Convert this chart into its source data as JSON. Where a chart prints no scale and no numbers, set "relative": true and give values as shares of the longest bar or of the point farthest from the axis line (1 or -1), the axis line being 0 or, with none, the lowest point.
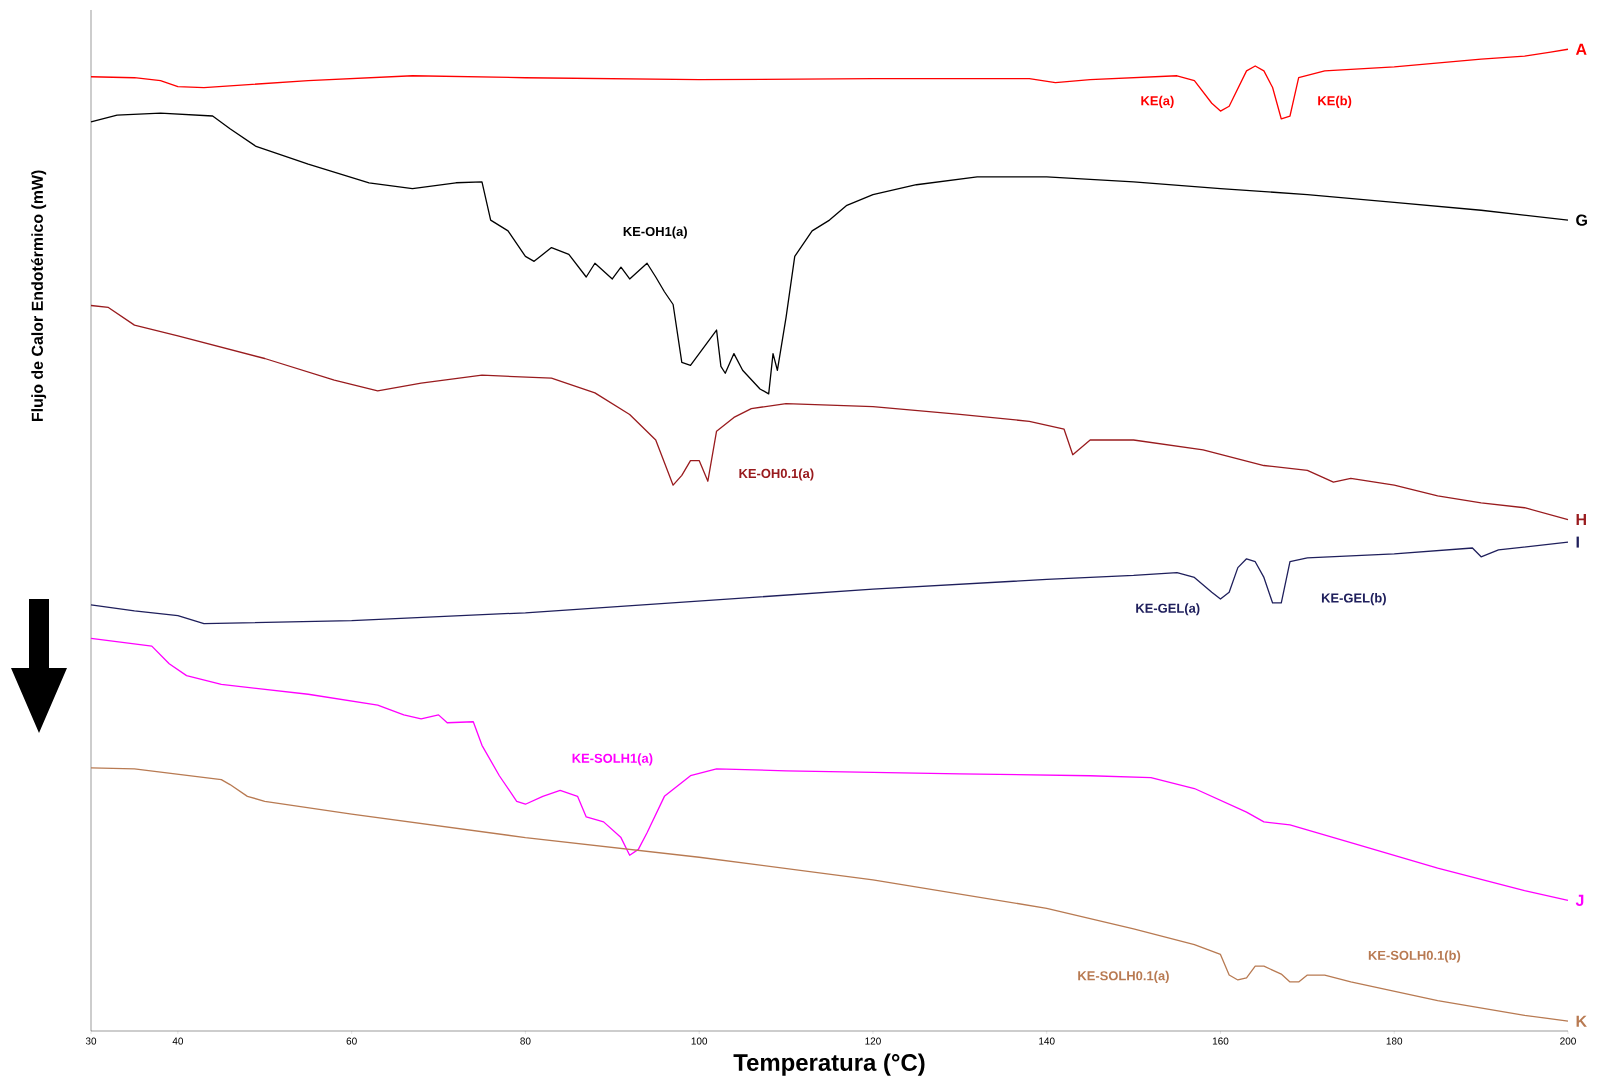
{
  "chart_data": {
    "type": "line",
    "relative": true,
    "xlabel": "Temperatura (°C)",
    "ylabel": "Flujo de Calor Endotérmico (mW)",
    "xlim": [
      30,
      200
    ],
    "xticks": [
      30,
      40,
      60,
      80,
      100,
      120,
      140,
      160,
      180,
      200
    ],
    "series": [
      {
        "name": "A",
        "color": "#ff0000",
        "x": [
          30,
          35,
          38,
          40,
          43,
          55,
          67,
          80,
          100,
          120,
          138,
          141,
          145,
          155,
          157,
          159,
          160,
          161,
          163,
          164,
          165,
          166,
          167,
          168,
          169,
          172,
          180,
          190,
          195,
          198,
          200
        ],
        "values": [
          0.972,
          0.971,
          0.968,
          0.962,
          0.961,
          0.968,
          0.973,
          0.971,
          0.969,
          0.97,
          0.97,
          0.966,
          0.969,
          0.973,
          0.968,
          0.945,
          0.937,
          0.942,
          0.978,
          0.983,
          0.978,
          0.961,
          0.929,
          0.932,
          0.971,
          0.978,
          0.982,
          0.99,
          0.993,
          0.997,
          1.0
        ]
      },
      {
        "name": "G",
        "color": "#000000",
        "x": [
          30,
          33,
          38,
          44,
          46,
          49,
          55,
          62,
          67,
          72,
          75,
          76,
          78,
          80,
          81,
          83,
          85,
          87,
          88,
          90,
          91,
          92,
          94,
          95,
          96,
          97,
          98,
          99,
          100,
          102,
          102.5,
          103,
          104,
          105,
          107,
          108,
          108.5,
          109,
          110,
          111,
          113,
          115,
          117,
          120,
          125,
          132,
          140,
          150,
          160,
          170,
          180,
          190,
          200
        ],
        "values": [
          0.926,
          0.933,
          0.935,
          0.932,
          0.919,
          0.901,
          0.883,
          0.864,
          0.858,
          0.864,
          0.865,
          0.826,
          0.815,
          0.789,
          0.784,
          0.798,
          0.791,
          0.768,
          0.782,
          0.766,
          0.778,
          0.766,
          0.782,
          0.768,
          0.753,
          0.74,
          0.681,
          0.678,
          0.69,
          0.714,
          0.677,
          0.67,
          0.69,
          0.673,
          0.654,
          0.649,
          0.69,
          0.673,
          0.727,
          0.789,
          0.815,
          0.826,
          0.841,
          0.852,
          0.862,
          0.87,
          0.87,
          0.865,
          0.858,
          0.852,
          0.844,
          0.836,
          0.826
        ]
      },
      {
        "name": "H",
        "color": "#991b1e",
        "x": [
          30,
          32,
          35,
          40,
          50,
          58,
          63,
          68,
          75,
          83,
          88,
          92,
          95,
          97,
          98,
          99,
          100,
          101,
          102,
          104,
          106,
          110,
          120,
          130,
          138,
          142,
          143,
          145,
          150,
          158,
          165,
          170,
          173,
          175,
          180,
          185,
          190,
          195,
          200
        ],
        "values": [
          0.739,
          0.737,
          0.719,
          0.708,
          0.685,
          0.663,
          0.652,
          0.66,
          0.668,
          0.665,
          0.65,
          0.628,
          0.602,
          0.556,
          0.566,
          0.581,
          0.581,
          0.56,
          0.611,
          0.625,
          0.634,
          0.639,
          0.636,
          0.628,
          0.621,
          0.613,
          0.587,
          0.602,
          0.602,
          0.592,
          0.576,
          0.571,
          0.559,
          0.563,
          0.556,
          0.545,
          0.538,
          0.533,
          0.521
        ]
      },
      {
        "name": "I",
        "color": "#1f1f5c",
        "x": [
          30,
          35,
          40,
          43,
          60,
          80,
          100,
          120,
          140,
          150,
          155,
          157,
          159,
          160,
          161,
          162,
          163,
          164,
          165,
          166,
          167,
          168,
          170,
          180,
          189,
          190,
          192,
          200
        ],
        "values": [
          0.434,
          0.428,
          0.423,
          0.415,
          0.418,
          0.426,
          0.438,
          0.45,
          0.46,
          0.464,
          0.467,
          0.462,
          0.447,
          0.44,
          0.447,
          0.472,
          0.481,
          0.478,
          0.462,
          0.436,
          0.436,
          0.478,
          0.482,
          0.486,
          0.492,
          0.483,
          0.49,
          0.498
        ]
      },
      {
        "name": "J",
        "color": "#ff00ff",
        "x": [
          30,
          37,
          39,
          41,
          45,
          55,
          63,
          66,
          68,
          70,
          71,
          74,
          75,
          77,
          79,
          80,
          82,
          84,
          86,
          87,
          89,
          91,
          92,
          93,
          94,
          96,
          99,
          102,
          110,
          130,
          145,
          152,
          157,
          163,
          165,
          168,
          175,
          185,
          195,
          200
        ],
        "values": [
          0.4,
          0.392,
          0.374,
          0.362,
          0.353,
          0.343,
          0.332,
          0.322,
          0.318,
          0.322,
          0.314,
          0.315,
          0.291,
          0.26,
          0.234,
          0.231,
          0.239,
          0.245,
          0.239,
          0.218,
          0.213,
          0.197,
          0.179,
          0.185,
          0.202,
          0.239,
          0.26,
          0.267,
          0.265,
          0.262,
          0.26,
          0.258,
          0.247,
          0.223,
          0.213,
          0.21,
          0.192,
          0.166,
          0.143,
          0.133
        ]
      },
      {
        "name": "K",
        "color": "#b87a52",
        "x": [
          30,
          35,
          45,
          46,
          48,
          50,
          60,
          80,
          100,
          120,
          140,
          150,
          157,
          160,
          161,
          162,
          163,
          164,
          165,
          167,
          168,
          169,
          170,
          172,
          175,
          185,
          195,
          200
        ],
        "values": [
          0.268,
          0.267,
          0.256,
          0.251,
          0.239,
          0.234,
          0.221,
          0.197,
          0.177,
          0.154,
          0.125,
          0.104,
          0.088,
          0.078,
          0.057,
          0.052,
          0.054,
          0.066,
          0.066,
          0.058,
          0.05,
          0.05,
          0.057,
          0.057,
          0.05,
          0.031,
          0.016,
          0.01
        ]
      }
    ],
    "annotations": [
      "KE(a)",
      "KE(b)",
      "KE-OH1(a)",
      "KE-OH0.1(a)",
      "KE-GEL(a)",
      "KE-GEL(b)",
      "KE-SOLH1(a)",
      "KE-SOLH0.1(a)",
      "KE-SOLH0.1(b)"
    ]
  }
}
